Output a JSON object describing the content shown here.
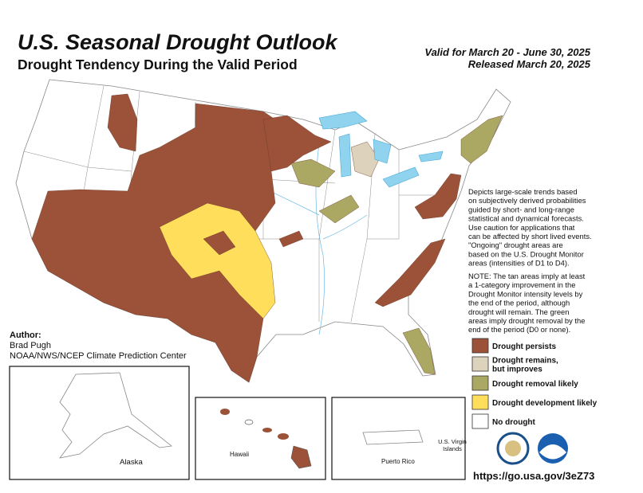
{
  "header": {
    "title": "U.S. Seasonal Drought Outlook",
    "subtitle": "Drought Tendency During the Valid Period",
    "valid": "Valid for March 20 - June 30, 2025",
    "released": "Released March 20, 2025"
  },
  "description": [
    "Depicts large-scale trends based",
    "on subjectively derived probabilities",
    "guided by short- and long-range",
    "statistical and dynamical forecasts.",
    "Use caution for applications that",
    "can be affected by short lived events.",
    "\"Ongoing\" drought areas are",
    "based on the U.S. Drought Monitor",
    "areas (intensities of D1 to D4)."
  ],
  "note": [
    "NOTE: The tan areas imply at least",
    "a 1-category improvement in the",
    "Drought Monitor intensity levels by",
    "the end of the period, although",
    "drought will remain. The green",
    "areas imply drought removal by the",
    "end of the period (D0 or none)."
  ],
  "author": {
    "heading": "Author:",
    "name": "Brad Pugh",
    "org": "NOAA/NWS/NCEP Climate Prediction Center"
  },
  "legend": [
    {
      "lines": [
        "Drought persists"
      ],
      "color": "#9b5238"
    },
    {
      "lines": [
        "Drought remains,",
        "but improves"
      ],
      "color": "#ddd2bb"
    },
    {
      "lines": [
        "Drought removal likely"
      ],
      "color": "#aaa862"
    },
    {
      "lines": [
        "Drought development likely"
      ],
      "color": "#ffde5c"
    },
    {
      "lines": [
        "No drought"
      ],
      "color": "#ffffff"
    }
  ],
  "insets": {
    "alaska": "Alaska",
    "hawaii": "Hawaii",
    "puerto_rico": "Puerto Rico",
    "virgin_islands": [
      "U.S. Virgin",
      "Islands"
    ]
  },
  "url": "https://go.usa.gov/3eZ73"
}
